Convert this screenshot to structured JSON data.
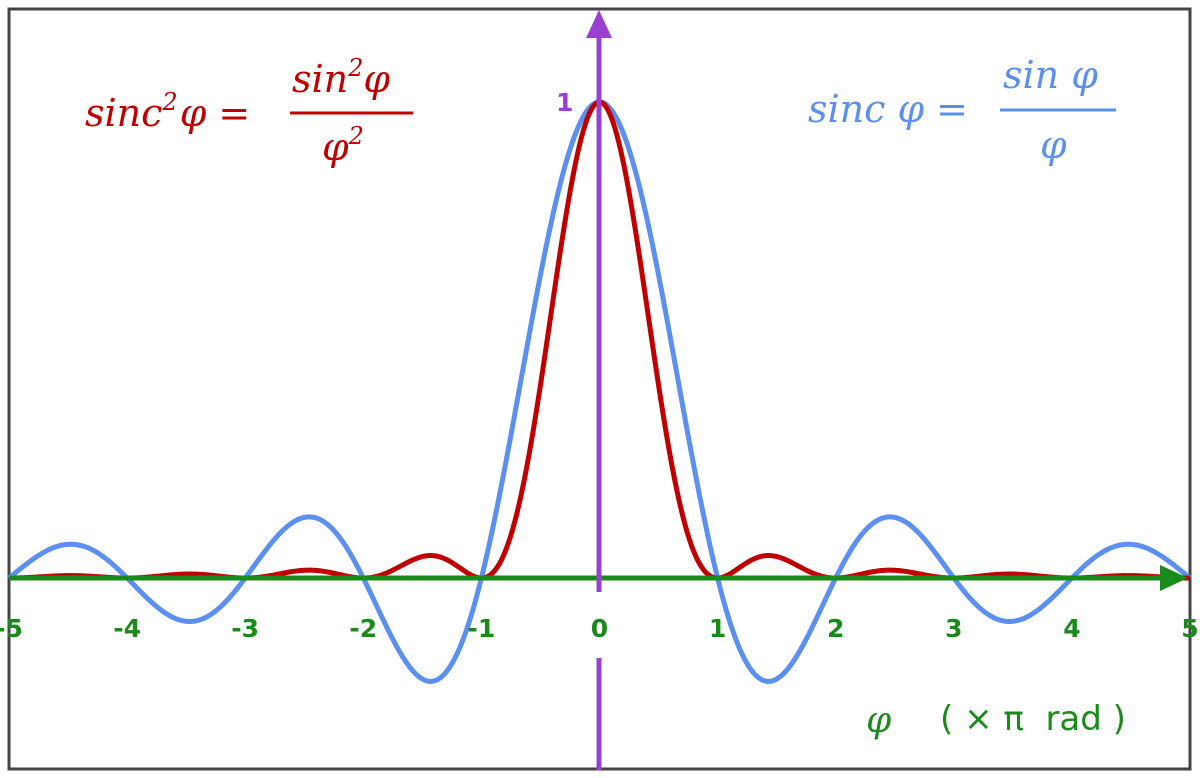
{
  "chart_data": {
    "type": "line",
    "xlabel": {
      "symbol": "φ",
      "unit": "( × π  rad )"
    },
    "xlim": [
      -5,
      5
    ],
    "ylim": [
      -0.22,
      1.0
    ],
    "x_ticks": [
      "-5",
      "-4",
      "-3",
      "-2",
      "-1",
      "0",
      "1",
      "2",
      "3",
      "4",
      "5"
    ],
    "y_ticks": [
      "1"
    ],
    "grid": false,
    "x_step": 0.5,
    "x": [
      -5,
      -4.5,
      -4,
      -3.5,
      -3,
      -2.5,
      -2,
      -1.5,
      -1,
      -0.5,
      0,
      0.5,
      1,
      1.5,
      2,
      2.5,
      3,
      3.5,
      4,
      4.5,
      5
    ],
    "series": [
      {
        "name": "sinc φ = sin φ / φ",
        "color": "#5b8ff0",
        "values": [
          0,
          0.0707,
          0,
          -0.0909,
          0,
          0.1273,
          0,
          -0.2122,
          0,
          0.6366,
          1,
          0.6366,
          0,
          -0.2122,
          0,
          0.1273,
          0,
          -0.0909,
          0,
          0.0707,
          0
        ]
      },
      {
        "name": "sinc²φ = sin²φ / φ²",
        "color": "#c00000",
        "values": [
          0,
          0.005,
          0,
          0.0083,
          0,
          0.0162,
          0,
          0.045,
          0,
          0.4053,
          1,
          0.4053,
          0,
          0.045,
          0,
          0.0162,
          0,
          0.0083,
          0,
          0.005,
          0
        ]
      }
    ],
    "legend": {
      "sinc2": {
        "lhs": "sinc",
        "lhs_sup": "2",
        "lhs_var": "φ =",
        "num": "sin",
        "num_sup": "2",
        "num_var": "φ",
        "den": "φ",
        "den_sup": "2",
        "position": "top-left"
      },
      "sinc": {
        "lhs": "sinc φ =",
        "num": "sin φ",
        "den": "φ",
        "position": "top-right"
      }
    },
    "colors": {
      "x_axis": "#1a8a1a",
      "y_axis": "#9b3fd1",
      "frame": "#444444"
    }
  }
}
